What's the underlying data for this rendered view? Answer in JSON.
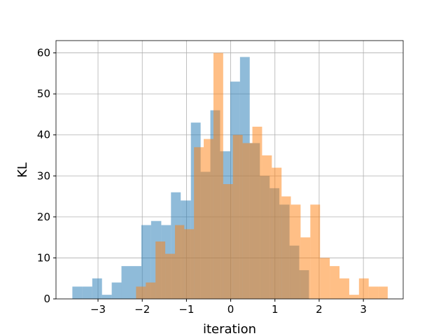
{
  "chart_data": {
    "type": "histogram",
    "xlabel": "iteration",
    "ylabel": "KL",
    "xlim": [
      -3.95,
      3.9
    ],
    "ylim": [
      0,
      63
    ],
    "xticks": [
      {
        "value": -3,
        "label": "−3"
      },
      {
        "value": -2,
        "label": "−2"
      },
      {
        "value": -1,
        "label": "−1"
      },
      0,
      1,
      2,
      3
    ],
    "yticks": [
      0,
      10,
      20,
      30,
      40,
      50,
      60
    ],
    "grid": true,
    "alpha": 0.5,
    "series": [
      {
        "color": "#1f77b4",
        "bins": [
          -3.58,
          -3.36,
          -3.13,
          -2.91,
          -2.69,
          -2.47,
          -2.24,
          -2.02,
          -1.8,
          -1.57,
          -1.35,
          -1.13,
          -0.9,
          -0.68,
          -0.46,
          -0.24,
          -0.01,
          0.21,
          0.43,
          0.66,
          0.88,
          1.1,
          1.33,
          1.55,
          1.77
        ],
        "values": [
          3,
          3,
          5,
          1,
          4,
          8,
          8,
          18,
          19,
          18,
          26,
          24,
          43,
          31,
          46,
          36,
          53,
          59,
          38,
          30,
          27,
          23,
          13,
          7
        ]
      },
      {
        "color": "#ff7f0e",
        "bins": [
          -2.14,
          -1.92,
          -1.7,
          -1.48,
          -1.26,
          -1.05,
          -0.83,
          -0.61,
          -0.39,
          -0.17,
          0.05,
          0.27,
          0.49,
          0.71,
          0.93,
          1.15,
          1.36,
          1.58,
          1.8,
          2.02,
          2.24,
          2.46,
          2.68,
          2.9,
          3.12,
          3.34,
          3.55
        ],
        "values": [
          3,
          4,
          14,
          11,
          18,
          17,
          37,
          39,
          60,
          28,
          40,
          38,
          42,
          35,
          32,
          25,
          23,
          15,
          23,
          10,
          8,
          5,
          1,
          5,
          3,
          3
        ]
      }
    ]
  }
}
